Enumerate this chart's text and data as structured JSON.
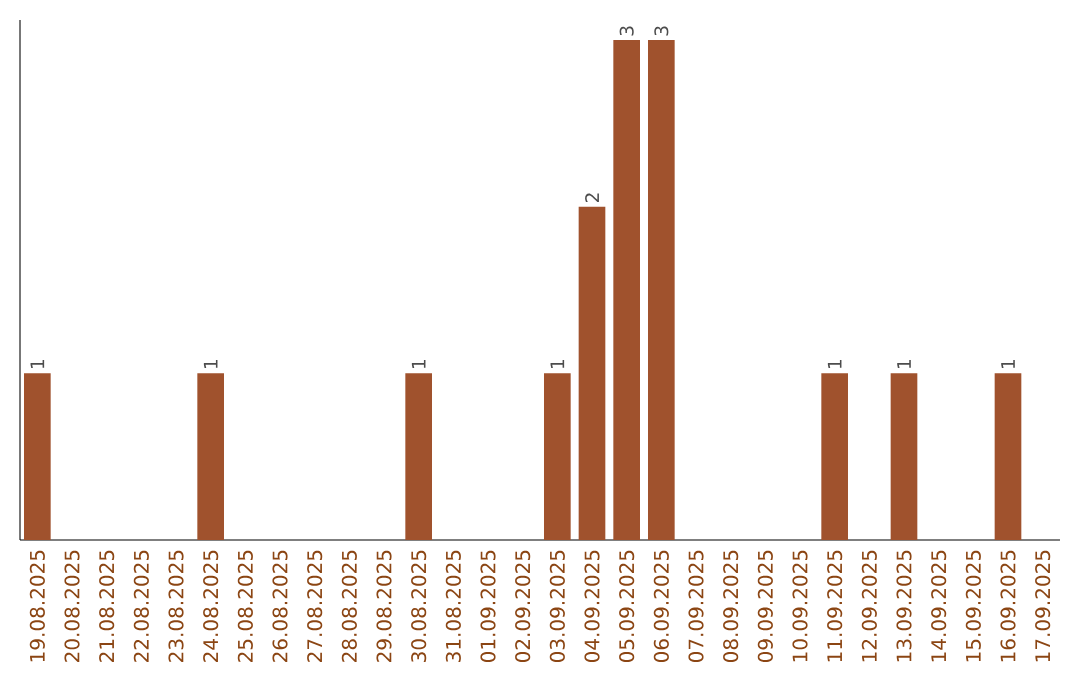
{
  "chart_data": {
    "type": "bar",
    "color": "#a0522d",
    "categories": [
      "19.08.2025",
      "20.08.2025",
      "21.08.2025",
      "22.08.2025",
      "23.08.2025",
      "24.08.2025",
      "25.08.2025",
      "26.08.2025",
      "27.08.2025",
      "28.08.2025",
      "29.08.2025",
      "30.08.2025",
      "31.08.2025",
      "01.09.2025",
      "02.09.2025",
      "03.09.2025",
      "04.09.2025",
      "05.09.2025",
      "06.09.2025",
      "07.09.2025",
      "08.09.2025",
      "09.09.2025",
      "10.09.2025",
      "11.09.2025",
      "12.09.2025",
      "13.09.2025",
      "14.09.2025",
      "15.09.2025",
      "16.09.2025",
      "17.09.2025"
    ],
    "values": [
      1,
      0,
      0,
      0,
      0,
      1,
      0,
      0,
      0,
      0,
      0,
      1,
      0,
      0,
      0,
      1,
      2,
      3,
      3,
      0,
      0,
      0,
      0,
      1,
      0,
      1,
      0,
      0,
      1,
      0
    ],
    "value_labels": [
      "1",
      null,
      null,
      null,
      null,
      "1",
      null,
      null,
      null,
      null,
      null,
      "1",
      null,
      null,
      null,
      "1",
      "2",
      "3",
      "3",
      null,
      null,
      null,
      null,
      "1",
      null,
      "1",
      null,
      null,
      "1",
      null
    ]
  }
}
